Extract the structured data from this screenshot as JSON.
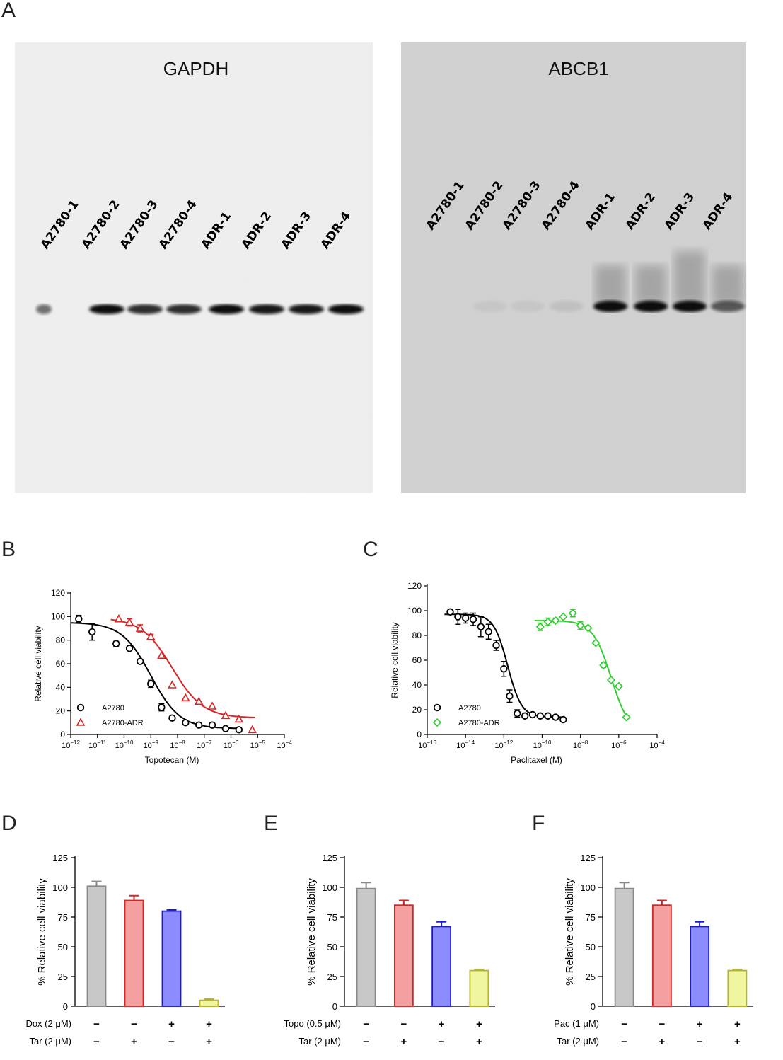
{
  "panels": {
    "A": "A",
    "B": "B",
    "C": "C",
    "D": "D",
    "E": "E",
    "F": "F"
  },
  "blot_left": {
    "title": "GAPDH",
    "lanes": [
      "A2780-1",
      "A2780-2",
      "A2780-3",
      "A2780-4",
      "ADR-1",
      "ADR-2",
      "ADR-3",
      "ADR-4"
    ],
    "band_intensity": [
      0.55,
      1.0,
      0.85,
      0.85,
      1.0,
      0.95,
      0.95,
      1.0
    ]
  },
  "blot_right": {
    "title": "ABCB1",
    "lanes": [
      "A2780-1",
      "A2780-2",
      "A2780-3",
      "A2780-4",
      "ADR-1",
      "ADR-2",
      "ADR-3",
      "ADR-4"
    ],
    "band_intensity": [
      0.0,
      0.05,
      0.05,
      0.08,
      1.0,
      1.0,
      1.0,
      0.6
    ]
  },
  "colors": {
    "black": "#000000",
    "red": "#d62728",
    "green": "#33cc33",
    "grey_bar": "#c8c8c8",
    "red_bar": "#f4a0a0",
    "blue_bar": "#8c8cff",
    "yellow_bar": "#f0f5a0"
  },
  "chart_data": [
    {
      "id": "B",
      "type": "scatter",
      "xlabel": "Topotecan (M)",
      "ylabel": "Relative cell viability",
      "xscale": "log",
      "xlim": [
        -12,
        -4
      ],
      "ylim": [
        0,
        120
      ],
      "xticks": [
        -12,
        -11,
        -10,
        -9,
        -8,
        -7,
        -6,
        -5,
        -4
      ],
      "yticks": [
        0,
        20,
        40,
        60,
        80,
        100,
        120
      ],
      "legend_position": "bottom-left",
      "series": [
        {
          "name": "A2780",
          "marker": "circle",
          "color": "#000000",
          "x": [
            -11.7,
            -11.2,
            -10.3,
            -9.8,
            -9.4,
            -9.0,
            -8.6,
            -8.2,
            -7.7,
            -7.2,
            -6.7,
            -6.2,
            -5.7
          ],
          "y": [
            98,
            87,
            77,
            73,
            62,
            43,
            23,
            14,
            10,
            8,
            8,
            5,
            4
          ],
          "err": [
            3,
            7,
            2,
            1,
            1,
            3,
            3,
            1,
            1,
            1,
            1,
            1,
            1
          ],
          "fit": {
            "top": 95,
            "bottom": 5,
            "log_ic50": -9.0,
            "hill": 0.8
          }
        },
        {
          "name": "A2780-ADR",
          "marker": "triangle",
          "color": "#d62728",
          "x": [
            -10.2,
            -9.8,
            -9.4,
            -9.0,
            -8.6,
            -8.2,
            -7.7,
            -7.2,
            -6.7,
            -6.2,
            -5.7,
            -5.2
          ],
          "y": [
            98,
            95,
            90,
            83,
            67,
            42,
            31,
            28,
            24,
            16,
            13,
            4
          ],
          "err": [
            1,
            3,
            3,
            2,
            1,
            1,
            1,
            1,
            1,
            1,
            1,
            1
          ],
          "fit": {
            "top": 99,
            "bottom": 14,
            "log_ic50": -8.2,
            "hill": 0.75
          }
        }
      ]
    },
    {
      "id": "C",
      "type": "scatter",
      "xlabel": "Paclitaxel (M)",
      "ylabel": "Relative cell viability",
      "xscale": "log",
      "xlim": [
        -16,
        -4
      ],
      "ylim": [
        0,
        120
      ],
      "xticks": [
        -16,
        -14,
        -12,
        -10,
        -8,
        -6,
        -4
      ],
      "yticks": [
        0,
        20,
        40,
        60,
        80,
        100,
        120
      ],
      "legend_position": "bottom-left",
      "series": [
        {
          "name": "A2780",
          "marker": "circle",
          "color": "#000000",
          "x": [
            -14.8,
            -14.4,
            -14.0,
            -13.6,
            -13.2,
            -12.8,
            -12.4,
            -12.0,
            -11.7,
            -11.3,
            -10.9,
            -10.5,
            -10.1,
            -9.7,
            -9.3,
            -8.9
          ],
          "y": [
            99,
            95,
            94,
            93,
            87,
            83,
            72,
            53,
            31,
            17,
            15,
            16,
            15,
            15,
            14,
            12
          ],
          "err": [
            1,
            6,
            4,
            5,
            8,
            6,
            4,
            6,
            5,
            3,
            1,
            1,
            1,
            1,
            1,
            1
          ],
          "fit": {
            "top": 97,
            "bottom": 14,
            "log_ic50": -11.8,
            "hill": 1.2
          }
        },
        {
          "name": "A2780-ADR",
          "marker": "diamond",
          "color": "#33cc33",
          "x": [
            -10.1,
            -9.7,
            -9.3,
            -8.9,
            -8.4,
            -8.0,
            -7.6,
            -7.2,
            -6.8,
            -6.4,
            -6.0,
            -5.6
          ],
          "y": [
            87,
            91,
            92,
            95,
            98,
            88,
            86,
            74,
            56,
            44,
            39,
            14
          ],
          "err": [
            3,
            3,
            2,
            1,
            3,
            3,
            1,
            1,
            2,
            1,
            1,
            1
          ],
          "fit": {
            "top": 92,
            "bottom": 0,
            "log_ic50": -6.4,
            "hill": 0.9
          }
        }
      ]
    },
    {
      "id": "D",
      "type": "bar",
      "ylabel": "% Relative cell viability",
      "ylim": [
        0,
        125
      ],
      "yticks": [
        0,
        25,
        50,
        75,
        100,
        125
      ],
      "values": [
        101,
        89,
        80,
        5
      ],
      "err": [
        4,
        4,
        1,
        1
      ],
      "bar_colors": [
        "#c8c8c8",
        "#f4a0a0",
        "#8c8cff",
        "#f0f5a0"
      ],
      "bar_edges": [
        "#888888",
        "#d62728",
        "#1a1acc",
        "#b5b52a"
      ],
      "row_labels": [
        "Dox (2 μM)",
        "Tar (2 μM)"
      ],
      "rows": [
        [
          "−",
          "−",
          "+",
          "+"
        ],
        [
          "−",
          "+",
          "−",
          "+"
        ]
      ]
    },
    {
      "id": "E",
      "type": "bar",
      "ylabel": "% Relative cell viability",
      "ylim": [
        0,
        125
      ],
      "yticks": [
        0,
        25,
        50,
        75,
        100,
        125
      ],
      "values": [
        99,
        85,
        67,
        30
      ],
      "err": [
        5,
        4,
        4,
        1
      ],
      "bar_colors": [
        "#c8c8c8",
        "#f4a0a0",
        "#8c8cff",
        "#f0f5a0"
      ],
      "bar_edges": [
        "#888888",
        "#d62728",
        "#1a1acc",
        "#b5b52a"
      ],
      "row_labels": [
        "Topo (0.5 μM)",
        "Tar (2 μM)"
      ],
      "rows": [
        [
          "−",
          "−",
          "+",
          "+"
        ],
        [
          "−",
          "+",
          "−",
          "+"
        ]
      ]
    },
    {
      "id": "F",
      "type": "bar",
      "ylabel": "% Relative cell viability",
      "ylim": [
        0,
        125
      ],
      "yticks": [
        0,
        25,
        50,
        75,
        100,
        125
      ],
      "values": [
        99,
        85,
        67,
        30
      ],
      "err": [
        5,
        4,
        4,
        1
      ],
      "bar_colors": [
        "#c8c8c8",
        "#f4a0a0",
        "#8c8cff",
        "#f0f5a0"
      ],
      "bar_edges": [
        "#888888",
        "#d62728",
        "#1a1acc",
        "#b5b52a"
      ],
      "row_labels": [
        "Pac (1 μM)",
        "Tar (2 μM)"
      ],
      "rows": [
        [
          "−",
          "−",
          "+",
          "+"
        ],
        [
          "−",
          "+",
          "−",
          "+"
        ]
      ]
    }
  ]
}
